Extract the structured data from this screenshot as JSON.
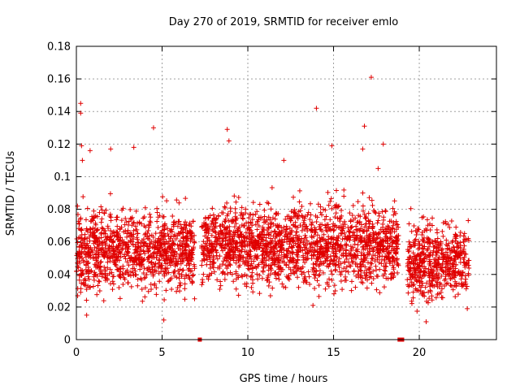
{
  "chart_data": {
    "type": "scatter",
    "title": "Day 270 of 2019, SRMTID for receiver emlo",
    "xlabel": "GPS time / hours",
    "ylabel": "SRMTID / TECUs",
    "xlim": [
      0,
      24.5
    ],
    "ylim": [
      0,
      0.18
    ],
    "x_ticks": [
      0,
      5,
      10,
      15,
      20
    ],
    "x_tick_labels": [
      "0",
      "5",
      "10",
      "15",
      "20"
    ],
    "y_ticks": [
      0,
      0.02,
      0.04,
      0.06,
      0.08,
      0.1,
      0.12,
      0.14,
      0.16,
      0.18
    ],
    "y_tick_labels": [
      "0",
      "0.02",
      "0.04",
      "0.06",
      "0.08",
      "0.1",
      "0.12",
      "0.14",
      "0.16",
      "0.18"
    ],
    "grid": true,
    "marker": "+",
    "color": "#e00000",
    "zero_markers_x": [
      7.2,
      18.85,
      19.0
    ],
    "segments": [
      {
        "start": 0.0,
        "end": 6.9,
        "mean": 0.055,
        "spread": 0.016
      },
      {
        "start": 7.3,
        "end": 18.8,
        "mean": 0.058,
        "spread": 0.016
      },
      {
        "start": 19.3,
        "end": 22.9,
        "mean": 0.048,
        "spread": 0.015
      }
    ],
    "outliers": [
      {
        "x": 0.25,
        "y": 0.145
      },
      {
        "x": 0.25,
        "y": 0.139
      },
      {
        "x": 0.3,
        "y": 0.119
      },
      {
        "x": 0.35,
        "y": 0.11
      },
      {
        "x": 0.8,
        "y": 0.116
      },
      {
        "x": 2.0,
        "y": 0.117
      },
      {
        "x": 3.35,
        "y": 0.118
      },
      {
        "x": 4.5,
        "y": 0.13
      },
      {
        "x": 8.8,
        "y": 0.129
      },
      {
        "x": 8.9,
        "y": 0.122
      },
      {
        "x": 12.1,
        "y": 0.11
      },
      {
        "x": 14.0,
        "y": 0.142
      },
      {
        "x": 14.9,
        "y": 0.119
      },
      {
        "x": 16.8,
        "y": 0.131
      },
      {
        "x": 16.7,
        "y": 0.117
      },
      {
        "x": 17.2,
        "y": 0.161
      },
      {
        "x": 17.9,
        "y": 0.12
      },
      {
        "x": 17.6,
        "y": 0.105
      },
      {
        "x": 5.1,
        "y": 0.012
      },
      {
        "x": 22.8,
        "y": 0.019
      },
      {
        "x": 20.4,
        "y": 0.011
      },
      {
        "x": 0.6,
        "y": 0.015
      },
      {
        "x": 13.8,
        "y": 0.021
      }
    ]
  }
}
